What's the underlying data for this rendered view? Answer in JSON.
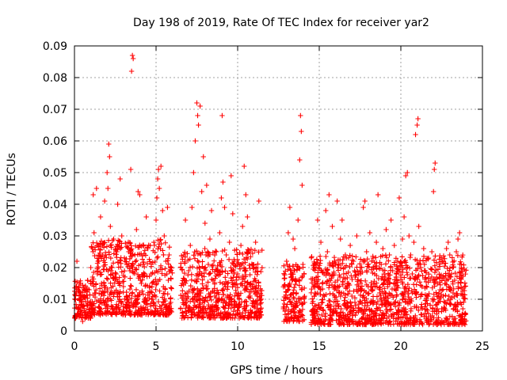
{
  "chart_data": {
    "type": "scatter",
    "title": "Day 198 of 2019, Rate Of TEC Index for receiver yar2",
    "xlabel": "GPS time / hours",
    "ylabel": "ROTI / TECUs",
    "xlim": [
      0,
      25
    ],
    "ylim": [
      0,
      0.09
    ],
    "x_ticks": [
      "0",
      "5",
      "10",
      "15",
      "20",
      "25"
    ],
    "y_ticks": [
      "0",
      "0.01",
      "0.02",
      "0.03",
      "0.04",
      "0.05",
      "0.06",
      "0.07",
      "0.08",
      "0.09"
    ],
    "x_tick_values": [
      0,
      5,
      10,
      15,
      20,
      25
    ],
    "y_tick_values": [
      0,
      0.01,
      0.02,
      0.03,
      0.04,
      0.05,
      0.06,
      0.07,
      0.08,
      0.09
    ],
    "grid": true,
    "marker": "+",
    "marker_color": "#ff0000",
    "series": [
      {
        "name": "ROTI",
        "points": [
          [
            0.05,
            0.004
          ],
          [
            0.1,
            0.012
          ],
          [
            0.15,
            0.022
          ],
          [
            0.2,
            0.007
          ],
          [
            0.3,
            0.015
          ],
          [
            0.35,
            0.005
          ],
          [
            0.45,
            0.009
          ],
          [
            0.5,
            0.003
          ],
          [
            0.6,
            0.011
          ],
          [
            0.7,
            0.006
          ],
          [
            0.8,
            0.008
          ],
          [
            0.9,
            0.013
          ],
          [
            1.0,
            0.02
          ],
          [
            1.05,
            0.007
          ],
          [
            1.1,
            0.026
          ],
          [
            1.15,
            0.043
          ],
          [
            1.2,
            0.031
          ],
          [
            1.3,
            0.012
          ],
          [
            1.35,
            0.045
          ],
          [
            1.4,
            0.018
          ],
          [
            1.5,
            0.022
          ],
          [
            1.55,
            0.009
          ],
          [
            1.6,
            0.036
          ],
          [
            1.7,
            0.027
          ],
          [
            1.8,
            0.015
          ],
          [
            1.85,
            0.041
          ],
          [
            1.9,
            0.024
          ],
          [
            2.0,
            0.05
          ],
          [
            2.05,
            0.045
          ],
          [
            2.1,
            0.059
          ],
          [
            2.15,
            0.055
          ],
          [
            2.2,
            0.033
          ],
          [
            2.25,
            0.012
          ],
          [
            2.3,
            0.02
          ],
          [
            2.4,
            0.029
          ],
          [
            2.5,
            0.017
          ],
          [
            2.6,
            0.025
          ],
          [
            2.65,
            0.04
          ],
          [
            2.7,
            0.008
          ],
          [
            2.8,
            0.048
          ],
          [
            2.9,
            0.03
          ],
          [
            3.0,
            0.014
          ],
          [
            3.1,
            0.022
          ],
          [
            3.2,
            0.011
          ],
          [
            3.3,
            0.028
          ],
          [
            3.4,
            0.019
          ],
          [
            3.45,
            0.051
          ],
          [
            3.5,
            0.082
          ],
          [
            3.55,
            0.087
          ],
          [
            3.6,
            0.086
          ],
          [
            3.7,
            0.024
          ],
          [
            3.8,
            0.032
          ],
          [
            3.9,
            0.044
          ],
          [
            4.0,
            0.043
          ],
          [
            4.1,
            0.015
          ],
          [
            4.2,
            0.021
          ],
          [
            4.3,
            0.009
          ],
          [
            4.4,
            0.036
          ],
          [
            4.5,
            0.026
          ],
          [
            4.6,
            0.012
          ],
          [
            4.7,
            0.018
          ],
          [
            4.8,
            0.01
          ],
          [
            4.9,
            0.027
          ],
          [
            5.0,
            0.035
          ],
          [
            5.05,
            0.042
          ],
          [
            5.1,
            0.048
          ],
          [
            5.15,
            0.051
          ],
          [
            5.2,
            0.045
          ],
          [
            5.3,
            0.052
          ],
          [
            5.4,
            0.038
          ],
          [
            5.5,
            0.03
          ],
          [
            5.6,
            0.022
          ],
          [
            5.7,
            0.039
          ],
          [
            5.75,
            0.016
          ],
          [
            5.8,
            0.024
          ],
          [
            5.9,
            0.009
          ],
          [
            6.5,
            0.007
          ],
          [
            6.6,
            0.015
          ],
          [
            6.7,
            0.024
          ],
          [
            6.8,
            0.035
          ],
          [
            6.9,
            0.012
          ],
          [
            7.0,
            0.019
          ],
          [
            7.1,
            0.027
          ],
          [
            7.2,
            0.039
          ],
          [
            7.3,
            0.05
          ],
          [
            7.4,
            0.06
          ],
          [
            7.5,
            0.072
          ],
          [
            7.55,
            0.068
          ],
          [
            7.6,
            0.065
          ],
          [
            7.7,
            0.071
          ],
          [
            7.8,
            0.044
          ],
          [
            7.9,
            0.055
          ],
          [
            8.0,
            0.034
          ],
          [
            8.1,
            0.046
          ],
          [
            8.2,
            0.021
          ],
          [
            8.3,
            0.029
          ],
          [
            8.4,
            0.038
          ],
          [
            8.5,
            0.016
          ],
          [
            8.6,
            0.011
          ],
          [
            8.7,
            0.025
          ],
          [
            8.8,
            0.019
          ],
          [
            8.9,
            0.031
          ],
          [
            9.0,
            0.042
          ],
          [
            9.05,
            0.068
          ],
          [
            9.1,
            0.047
          ],
          [
            9.2,
            0.039
          ],
          [
            9.3,
            0.024
          ],
          [
            9.4,
            0.014
          ],
          [
            9.5,
            0.028
          ],
          [
            9.6,
            0.049
          ],
          [
            9.7,
            0.037
          ],
          [
            9.8,
            0.022
          ],
          [
            9.9,
            0.012
          ],
          [
            10.0,
            0.018
          ],
          [
            10.1,
            0.01
          ],
          [
            10.2,
            0.027
          ],
          [
            10.3,
            0.033
          ],
          [
            10.4,
            0.052
          ],
          [
            10.5,
            0.043
          ],
          [
            10.6,
            0.036
          ],
          [
            10.7,
            0.025
          ],
          [
            10.8,
            0.015
          ],
          [
            10.9,
            0.008
          ],
          [
            11.0,
            0.02
          ],
          [
            11.1,
            0.028
          ],
          [
            11.2,
            0.011
          ],
          [
            11.3,
            0.041
          ],
          [
            11.4,
            0.006
          ],
          [
            12.8,
            0.007
          ],
          [
            12.9,
            0.014
          ],
          [
            13.0,
            0.022
          ],
          [
            13.1,
            0.031
          ],
          [
            13.2,
            0.039
          ],
          [
            13.3,
            0.018
          ],
          [
            13.4,
            0.029
          ],
          [
            13.5,
            0.026
          ],
          [
            13.6,
            0.012
          ],
          [
            13.7,
            0.035
          ],
          [
            13.8,
            0.054
          ],
          [
            13.85,
            0.068
          ],
          [
            13.9,
            0.063
          ],
          [
            13.95,
            0.046
          ],
          [
            14.0,
            0.021
          ],
          [
            14.1,
            0.009
          ],
          [
            14.6,
            0.006
          ],
          [
            14.7,
            0.011
          ],
          [
            14.8,
            0.02
          ],
          [
            14.9,
            0.035
          ],
          [
            15.0,
            0.014
          ],
          [
            15.1,
            0.028
          ],
          [
            15.2,
            0.009
          ],
          [
            15.3,
            0.018
          ],
          [
            15.4,
            0.038
          ],
          [
            15.5,
            0.025
          ],
          [
            15.6,
            0.043
          ],
          [
            15.7,
            0.016
          ],
          [
            15.8,
            0.033
          ],
          [
            15.9,
            0.007
          ],
          [
            16.0,
            0.021
          ],
          [
            16.1,
            0.041
          ],
          [
            16.2,
            0.012
          ],
          [
            16.3,
            0.029
          ],
          [
            16.4,
            0.035
          ],
          [
            16.5,
            0.018
          ],
          [
            16.6,
            0.024
          ],
          [
            16.7,
            0.009
          ],
          [
            16.8,
            0.015
          ],
          [
            16.9,
            0.027
          ],
          [
            17.0,
            0.011
          ],
          [
            17.1,
            0.022
          ],
          [
            17.2,
            0.017
          ],
          [
            17.3,
            0.03
          ],
          [
            17.4,
            0.006
          ],
          [
            17.5,
            0.019
          ],
          [
            17.6,
            0.013
          ],
          [
            17.7,
            0.039
          ],
          [
            17.8,
            0.041
          ],
          [
            17.9,
            0.025
          ],
          [
            18.0,
            0.014
          ],
          [
            18.1,
            0.031
          ],
          [
            18.2,
            0.009
          ],
          [
            18.3,
            0.023
          ],
          [
            18.4,
            0.018
          ],
          [
            18.5,
            0.028
          ],
          [
            18.6,
            0.043
          ],
          [
            18.7,
            0.012
          ],
          [
            18.8,
            0.021
          ],
          [
            18.9,
            0.026
          ],
          [
            19.0,
            0.016
          ],
          [
            19.1,
            0.032
          ],
          [
            19.2,
            0.011
          ],
          [
            19.3,
            0.024
          ],
          [
            19.4,
            0.035
          ],
          [
            19.5,
            0.019
          ],
          [
            19.6,
            0.027
          ],
          [
            19.7,
            0.013
          ],
          [
            19.8,
            0.022
          ],
          [
            19.9,
            0.042
          ],
          [
            20.0,
            0.017
          ],
          [
            20.1,
            0.029
          ],
          [
            20.2,
            0.036
          ],
          [
            20.3,
            0.049
          ],
          [
            20.4,
            0.05
          ],
          [
            20.5,
            0.03
          ],
          [
            20.6,
            0.024
          ],
          [
            20.7,
            0.018
          ],
          [
            20.8,
            0.028
          ],
          [
            20.9,
            0.062
          ],
          [
            21.0,
            0.065
          ],
          [
            21.05,
            0.067
          ],
          [
            21.1,
            0.033
          ],
          [
            21.2,
            0.021
          ],
          [
            21.3,
            0.014
          ],
          [
            21.4,
            0.026
          ],
          [
            21.5,
            0.019
          ],
          [
            21.6,
            0.011
          ],
          [
            21.7,
            0.023
          ],
          [
            21.8,
            0.016
          ],
          [
            21.9,
            0.025
          ],
          [
            22.0,
            0.044
          ],
          [
            22.05,
            0.051
          ],
          [
            22.1,
            0.053
          ],
          [
            22.2,
            0.017
          ],
          [
            22.3,
            0.009
          ],
          [
            22.4,
            0.013
          ],
          [
            22.5,
            0.007
          ],
          [
            22.6,
            0.011
          ],
          [
            22.7,
            0.015
          ],
          [
            22.8,
            0.026
          ],
          [
            22.9,
            0.028
          ],
          [
            23.0,
            0.024
          ],
          [
            23.1,
            0.018
          ],
          [
            23.2,
            0.012
          ],
          [
            23.3,
            0.016
          ],
          [
            23.4,
            0.025
          ],
          [
            23.5,
            0.029
          ],
          [
            23.6,
            0.031
          ],
          [
            23.7,
            0.021
          ],
          [
            23.8,
            0.011
          ],
          [
            23.9,
            0.014
          ]
        ]
      }
    ],
    "density_segments": [
      {
        "x": [
          0.0,
          1.0
        ],
        "base": 0.004,
        "spread": 0.012
      },
      {
        "x": [
          1.0,
          6.0
        ],
        "base": 0.005,
        "spread": 0.024
      },
      {
        "x": [
          6.5,
          11.5
        ],
        "base": 0.004,
        "spread": 0.022
      },
      {
        "x": [
          12.8,
          14.1
        ],
        "base": 0.003,
        "spread": 0.018
      },
      {
        "x": [
          14.5,
          24.0
        ],
        "base": 0.002,
        "spread": 0.022
      }
    ]
  }
}
